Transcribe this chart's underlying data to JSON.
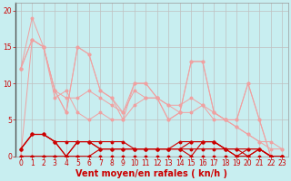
{
  "title": "",
  "xlabel": "Vent moyen/en rafales ( kn/h )",
  "background_color": "#c8eef0",
  "grid_color": "#c0c0c0",
  "xlim": [
    -0.5,
    23.5
  ],
  "ylim": [
    0,
    21
  ],
  "yticks": [
    0,
    5,
    10,
    15,
    20
  ],
  "xticks": [
    0,
    1,
    2,
    3,
    4,
    5,
    6,
    7,
    8,
    9,
    10,
    11,
    12,
    13,
    14,
    15,
    16,
    17,
    18,
    19,
    20,
    21,
    22,
    23
  ],
  "lines_light": [
    {
      "x": [
        0,
        1,
        2,
        3,
        4,
        5,
        6,
        7,
        8,
        9,
        10,
        11,
        12,
        13,
        14,
        15,
        16,
        17,
        18,
        19,
        20,
        21,
        22,
        23
      ],
      "y": [
        12,
        19,
        15,
        9,
        6,
        15,
        14,
        9,
        8,
        6,
        10,
        10,
        8,
        5,
        6,
        13,
        13,
        6,
        5,
        5,
        10,
        5,
        0,
        0
      ]
    },
    {
      "x": [
        0,
        1,
        2,
        3,
        4,
        5,
        6,
        7,
        8,
        9,
        10,
        11,
        12,
        13,
        14,
        15,
        16,
        17,
        18,
        19,
        20,
        21,
        22,
        23
      ],
      "y": [
        12,
        16,
        15,
        9,
        8,
        8,
        9,
        8,
        7,
        6,
        9,
        8,
        8,
        7,
        6,
        6,
        7,
        5,
        5,
        4,
        3,
        2,
        2,
        1
      ]
    },
    {
      "x": [
        0,
        1,
        2,
        3,
        4,
        5,
        6,
        7,
        8,
        9,
        10,
        11,
        12,
        13,
        14,
        15,
        16,
        17,
        18,
        19,
        20,
        21,
        22,
        23
      ],
      "y": [
        12,
        16,
        15,
        8,
        9,
        6,
        5,
        6,
        5,
        5,
        7,
        8,
        8,
        7,
        7,
        8,
        7,
        6,
        5,
        4,
        3,
        2,
        1,
        1
      ]
    },
    {
      "x": [
        0,
        1,
        2,
        3,
        4,
        5,
        6,
        7,
        8,
        9,
        10,
        11,
        12,
        13,
        14,
        15,
        16,
        17,
        18,
        19,
        20,
        21,
        22,
        23
      ],
      "y": [
        0,
        16,
        15,
        9,
        6,
        15,
        14,
        9,
        8,
        5,
        10,
        10,
        8,
        5,
        6,
        13,
        13,
        6,
        5,
        5,
        10,
        5,
        0,
        0
      ]
    }
  ],
  "lines_dark": [
    {
      "x": [
        0,
        1,
        2,
        3,
        4,
        5,
        6,
        7,
        8,
        9,
        10,
        11,
        12,
        13,
        14,
        15,
        16,
        17,
        18,
        19,
        20,
        21,
        22,
        23
      ],
      "y": [
        1,
        3,
        3,
        2,
        0,
        2,
        2,
        1,
        1,
        1,
        1,
        1,
        1,
        1,
        1,
        1,
        1,
        1,
        1,
        0,
        1,
        1,
        0,
        0
      ]
    },
    {
      "x": [
        0,
        1,
        2,
        3,
        4,
        5,
        6,
        7,
        8,
        9,
        10,
        11,
        12,
        13,
        14,
        15,
        16,
        17,
        18,
        19,
        20,
        21,
        22,
        23
      ],
      "y": [
        1,
        3,
        3,
        2,
        0,
        2,
        2,
        1,
        1,
        1,
        1,
        1,
        1,
        1,
        1,
        2,
        2,
        2,
        1,
        1,
        1,
        1,
        0,
        0
      ]
    },
    {
      "x": [
        0,
        1,
        2,
        3,
        4,
        5,
        6,
        7,
        8,
        9,
        10,
        11,
        12,
        13,
        14,
        15,
        16,
        17,
        18,
        19,
        20,
        21,
        22,
        23
      ],
      "y": [
        0,
        0,
        0,
        0,
        0,
        0,
        0,
        1,
        1,
        1,
        1,
        1,
        1,
        1,
        1,
        0,
        2,
        2,
        1,
        1,
        0,
        1,
        0,
        0
      ]
    },
    {
      "x": [
        0,
        1,
        2,
        3,
        4,
        5,
        6,
        7,
        8,
        9,
        10,
        11,
        12,
        13,
        14,
        15,
        16,
        17,
        18,
        19,
        20,
        21,
        22,
        23
      ],
      "y": [
        0,
        0,
        0,
        0,
        0,
        0,
        0,
        0,
        0,
        0,
        0,
        0,
        0,
        0,
        0,
        0,
        0,
        0,
        0,
        0,
        0,
        0,
        0,
        0
      ]
    },
    {
      "x": [
        0,
        1,
        2,
        3,
        4,
        5,
        6,
        7,
        8,
        9,
        10,
        11,
        12,
        13,
        14,
        15,
        16,
        17,
        18,
        19,
        20,
        21,
        22,
        23
      ],
      "y": [
        1,
        3,
        3,
        2,
        2,
        2,
        2,
        2,
        2,
        2,
        1,
        1,
        1,
        1,
        2,
        2,
        2,
        2,
        1,
        0,
        0,
        1,
        0,
        0
      ]
    }
  ],
  "color_light": "#f0a0a0",
  "color_dark": "#cc0000",
  "marker_size": 1.8,
  "xlabel_color": "#cc0000",
  "xlabel_fontsize": 7,
  "tick_color": "#cc0000",
  "tick_fontsize": 5.5
}
